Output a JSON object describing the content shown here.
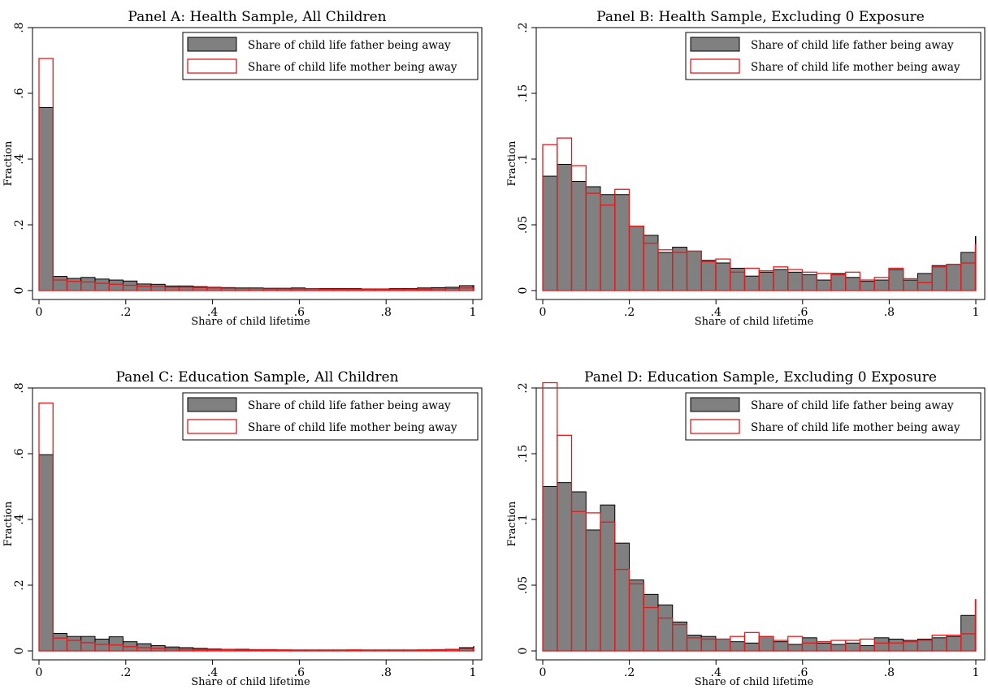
{
  "chart_data": [
    {
      "type": "bar",
      "title": "Panel A: Health Sample, All Children",
      "xlabel": "Share of child lifetime",
      "ylabel": "Fraction",
      "xlim": [
        0,
        1
      ],
      "ylim": [
        0,
        0.8
      ],
      "xticks": [
        "0",
        ".2",
        ".4",
        ".6",
        ".8",
        "1"
      ],
      "yticks": [
        "0",
        ".2",
        ".4",
        ".6",
        ".8"
      ],
      "grid": false,
      "legend_position": "top-right",
      "bin_width": 0.0323,
      "series": [
        {
          "name": "Share of child life father being away",
          "style": "filled",
          "color": "#808080",
          "values": [
            0.557,
            0.043,
            0.037,
            0.04,
            0.035,
            0.032,
            0.029,
            0.02,
            0.019,
            0.014,
            0.014,
            0.012,
            0.01,
            0.009,
            0.008,
            0.008,
            0.007,
            0.007,
            0.008,
            0.006,
            0.006,
            0.006,
            0.006,
            0.005,
            0.005,
            0.006,
            0.006,
            0.008,
            0.009,
            0.01,
            0.015,
            0.015
          ]
        },
        {
          "name": "Share of child life mother being away",
          "style": "outline",
          "color": "#e31a1c",
          "values": [
            0.706,
            0.032,
            0.028,
            0.026,
            0.022,
            0.019,
            0.016,
            0.013,
            0.012,
            0.01,
            0.01,
            0.009,
            0.008,
            0.007,
            0.006,
            0.006,
            0.005,
            0.005,
            0.005,
            0.005,
            0.004,
            0.004,
            0.004,
            0.004,
            0.004,
            0.004,
            0.004,
            0.004,
            0.005,
            0.006,
            0.008,
            0.01
          ]
        }
      ]
    },
    {
      "type": "bar",
      "title": "Panel B: Health Sample, Excluding 0 Exposure",
      "xlabel": "Share of child lifetime",
      "ylabel": "Fraction",
      "xlim": [
        0,
        1
      ],
      "ylim": [
        0,
        0.2
      ],
      "xticks": [
        "0",
        ".2",
        ".4",
        ".6",
        ".8",
        "1"
      ],
      "yticks": [
        "0",
        ".05",
        ".1",
        ".15",
        ".2"
      ],
      "grid": false,
      "legend_position": "top-right",
      "bin_width": 0.0333,
      "series": [
        {
          "name": "Share of child life father being away",
          "style": "filled",
          "color": "#808080",
          "values": [
            0.087,
            0.096,
            0.083,
            0.079,
            0.073,
            0.073,
            0.049,
            0.042,
            0.029,
            0.033,
            0.03,
            0.023,
            0.021,
            0.017,
            0.011,
            0.014,
            0.016,
            0.014,
            0.012,
            0.008,
            0.013,
            0.01,
            0.007,
            0.008,
            0.016,
            0.008,
            0.013,
            0.019,
            0.02,
            0.029,
            0.041
          ]
        },
        {
          "name": "Share of child life mother being away",
          "style": "outline",
          "color": "#e31a1c",
          "values": [
            0.111,
            0.116,
            0.095,
            0.074,
            0.065,
            0.077,
            0.049,
            0.036,
            0.031,
            0.029,
            0.03,
            0.022,
            0.024,
            0.014,
            0.017,
            0.015,
            0.018,
            0.016,
            0.014,
            0.013,
            0.012,
            0.014,
            0.008,
            0.01,
            0.017,
            0.009,
            0.006,
            0.018,
            0.02,
            0.021,
            0.035
          ]
        }
      ]
    },
    {
      "type": "bar",
      "title": "Panel C: Education Sample, All Children",
      "xlabel": "Share of child lifetime",
      "ylabel": "Fraction",
      "xlim": [
        0,
        1
      ],
      "ylim": [
        0,
        0.8
      ],
      "xticks": [
        "0",
        ".2",
        ".4",
        ".6",
        ".8",
        "1"
      ],
      "yticks": [
        "0",
        ".2",
        ".4",
        ".6",
        ".8"
      ],
      "grid": false,
      "legend_position": "top-right",
      "bin_width": 0.0323,
      "series": [
        {
          "name": "Share of child life father being away",
          "style": "filled",
          "color": "#808080",
          "values": [
            0.597,
            0.053,
            0.044,
            0.044,
            0.036,
            0.043,
            0.028,
            0.022,
            0.016,
            0.012,
            0.01,
            0.008,
            0.006,
            0.005,
            0.005,
            0.004,
            0.004,
            0.003,
            0.003,
            0.003,
            0.003,
            0.003,
            0.003,
            0.003,
            0.003,
            0.003,
            0.003,
            0.003,
            0.004,
            0.005,
            0.01,
            0.013
          ]
        },
        {
          "name": "Share of child life mother being away",
          "style": "outline",
          "color": "#e31a1c",
          "values": [
            0.754,
            0.039,
            0.032,
            0.025,
            0.02,
            0.018,
            0.013,
            0.01,
            0.008,
            0.006,
            0.005,
            0.004,
            0.004,
            0.004,
            0.003,
            0.003,
            0.003,
            0.003,
            0.002,
            0.002,
            0.002,
            0.002,
            0.003,
            0.002,
            0.002,
            0.002,
            0.002,
            0.003,
            0.003,
            0.004,
            0.007,
            0.008
          ]
        }
      ]
    },
    {
      "type": "bar",
      "title": "Panel D: Education Sample, Excluding 0 Exposure",
      "xlabel": "Share of child lifetime",
      "ylabel": "Fraction",
      "xlim": [
        0,
        1
      ],
      "ylim": [
        0,
        0.2
      ],
      "xticks": [
        "0",
        ".2",
        ".4",
        ".6",
        ".8",
        "1"
      ],
      "yticks": [
        "0",
        ".05",
        ".1",
        ".15",
        ".2"
      ],
      "grid": false,
      "legend_position": "top-right",
      "bin_width": 0.0333,
      "series": [
        {
          "name": "Share of child life father being away",
          "style": "filled",
          "color": "#808080",
          "values": [
            0.125,
            0.128,
            0.121,
            0.092,
            0.111,
            0.082,
            0.054,
            0.043,
            0.035,
            0.022,
            0.012,
            0.011,
            0.009,
            0.007,
            0.006,
            0.011,
            0.007,
            0.005,
            0.01,
            0.006,
            0.005,
            0.006,
            0.004,
            0.01,
            0.009,
            0.008,
            0.009,
            0.01,
            0.011,
            0.027,
            0.034
          ]
        },
        {
          "name": "Share of child life mother being away",
          "style": "outline",
          "color": "#e31a1c",
          "values": [
            0.204,
            0.164,
            0.106,
            0.105,
            0.098,
            0.062,
            0.051,
            0.033,
            0.025,
            0.02,
            0.01,
            0.009,
            0.009,
            0.011,
            0.014,
            0.011,
            0.008,
            0.011,
            0.006,
            0.007,
            0.008,
            0.008,
            0.009,
            0.006,
            0.006,
            0.007,
            0.008,
            0.012,
            0.012,
            0.013,
            0.039
          ]
        }
      ]
    }
  ]
}
